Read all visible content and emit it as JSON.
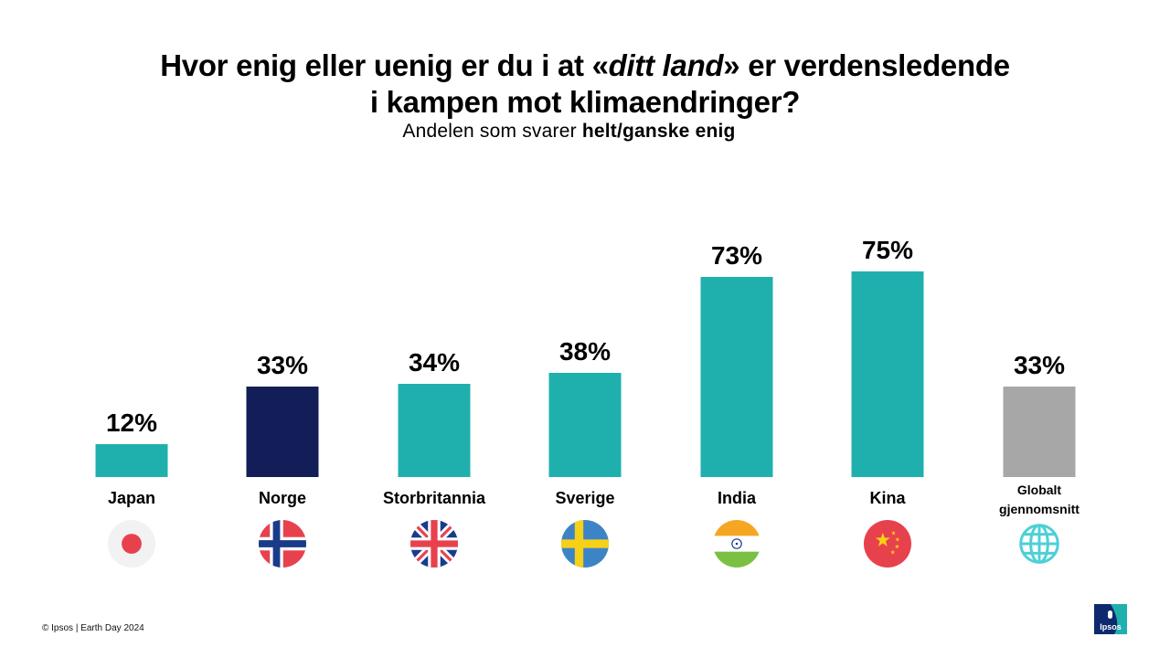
{
  "title": {
    "line1_a": "Hvor enig eller uenig er du i at «",
    "line1_em": "ditt land",
    "line1_b": "» er verdensledende",
    "line2": "i kampen mot klimaendringer?"
  },
  "subtitle": {
    "normal": "Andelen som svarer ",
    "bold": "helt/ganske enig"
  },
  "chart_data": {
    "type": "bar",
    "categories": [
      "Japan",
      "Norge",
      "Storbritannia",
      "Sverige",
      "India",
      "Kina",
      "Globalt gjennomsnitt"
    ],
    "values": [
      12,
      33,
      34,
      38,
      73,
      75,
      33
    ],
    "value_labels": [
      "12%",
      "33%",
      "34%",
      "38%",
      "73%",
      "75%",
      "33%"
    ],
    "unit": "%",
    "colors": [
      "#1fb0ae",
      "#131d58",
      "#1fb0ae",
      "#1fb0ae",
      "#1fb0ae",
      "#1fb0ae",
      "#a7a7a7"
    ],
    "icons": [
      "japan-flag-icon",
      "norway-flag-icon",
      "uk-flag-icon",
      "sweden-flag-icon",
      "india-flag-icon",
      "china-flag-icon",
      "globe-icon"
    ],
    "ylim": [
      0,
      100
    ],
    "grid": false,
    "legend": "none"
  },
  "footer": "© Ipsos | Earth Day 2024",
  "logo_text": "Ipsos"
}
